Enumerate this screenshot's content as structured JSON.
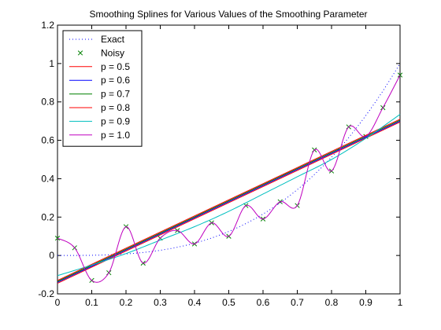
{
  "chart_data": {
    "type": "line",
    "title": "Smoothing Splines for Various Values of the Smoothing Parameter",
    "xlabel": "",
    "ylabel": "",
    "xlim": [
      0,
      1
    ],
    "ylim": [
      -0.2,
      1.2
    ],
    "x_ticks": [
      0,
      0.1,
      0.2,
      0.3,
      0.4,
      0.5,
      0.6,
      0.7,
      0.8,
      0.9,
      1
    ],
    "x_tick_labels": [
      "0",
      "0.1",
      "0.2",
      "0.3",
      "0.4",
      "0.5",
      "0.6",
      "0.7",
      "0.8",
      "0.9",
      "1"
    ],
    "y_ticks": [
      -0.2,
      0,
      0.2,
      0.4,
      0.6,
      0.8,
      1,
      1.2
    ],
    "y_tick_labels": [
      "-0.2",
      "0",
      "0.2",
      "0.4",
      "0.6",
      "0.8",
      "1",
      "1.2"
    ],
    "grid": false,
    "legend_position": "top-left",
    "series": [
      {
        "name": "Exact",
        "style": "dotted",
        "color": "#0000ff",
        "x": [
          0,
          0.05,
          0.1,
          0.15,
          0.2,
          0.25,
          0.3,
          0.35,
          0.4,
          0.45,
          0.5,
          0.55,
          0.6,
          0.65,
          0.7,
          0.75,
          0.8,
          0.85,
          0.9,
          0.95,
          1.0
        ],
        "y": [
          0,
          0.000125,
          0.001,
          0.003375,
          0.008,
          0.015625,
          0.027,
          0.042875,
          0.064,
          0.091125,
          0.125,
          0.166375,
          0.216,
          0.274625,
          0.343,
          0.421875,
          0.512,
          0.614125,
          0.729,
          0.857375,
          1.0
        ]
      },
      {
        "name": "Noisy",
        "style": "markers",
        "marker": "x",
        "color": "#008000",
        "x": [
          0,
          0.05,
          0.1,
          0.15,
          0.2,
          0.25,
          0.3,
          0.35,
          0.4,
          0.45,
          0.5,
          0.55,
          0.6,
          0.65,
          0.7,
          0.75,
          0.8,
          0.85,
          0.9,
          0.95,
          1.0
        ],
        "y": [
          0.09,
          0.04,
          -0.13,
          -0.09,
          0.15,
          -0.04,
          0.09,
          0.13,
          0.06,
          0.17,
          0.1,
          0.26,
          0.19,
          0.28,
          0.26,
          0.55,
          0.44,
          0.67,
          0.62,
          0.77,
          0.94
        ]
      },
      {
        "name": "p = 0.5",
        "style": "solid",
        "color": "#ff0000",
        "x": [
          0,
          1
        ],
        "y": [
          -0.145,
          0.695
        ]
      },
      {
        "name": "p = 0.6",
        "style": "solid",
        "color": "#0000ff",
        "x": [
          0,
          1
        ],
        "y": [
          -0.14,
          0.7
        ]
      },
      {
        "name": "p = 0.7",
        "style": "solid",
        "color": "#008000",
        "x": [
          0,
          1
        ],
        "y": [
          -0.135,
          0.705
        ]
      },
      {
        "name": "p = 0.8",
        "style": "solid",
        "color": "#ff0000",
        "x": [
          0,
          1
        ],
        "y": [
          -0.13,
          0.71
        ]
      },
      {
        "name": "p = 0.9",
        "style": "solid",
        "color": "#00bfbf",
        "x": [
          0,
          0.1,
          0.2,
          0.3,
          0.4,
          0.5,
          0.6,
          0.7,
          0.8,
          0.9,
          1.0
        ],
        "y": [
          -0.105,
          -0.05,
          0.01,
          0.08,
          0.15,
          0.23,
          0.32,
          0.41,
          0.5,
          0.61,
          0.735
        ]
      },
      {
        "name": "p = 1.0",
        "style": "solid",
        "color": "#bf00bf",
        "x": [
          0,
          0.05,
          0.1,
          0.15,
          0.2,
          0.25,
          0.3,
          0.35,
          0.4,
          0.45,
          0.5,
          0.55,
          0.6,
          0.65,
          0.7,
          0.75,
          0.8,
          0.85,
          0.9,
          0.95,
          1.0
        ],
        "y": [
          0.09,
          0.04,
          -0.13,
          -0.09,
          0.15,
          -0.04,
          0.09,
          0.13,
          0.06,
          0.17,
          0.1,
          0.26,
          0.19,
          0.28,
          0.26,
          0.55,
          0.44,
          0.67,
          0.62,
          0.77,
          0.94
        ]
      }
    ]
  }
}
